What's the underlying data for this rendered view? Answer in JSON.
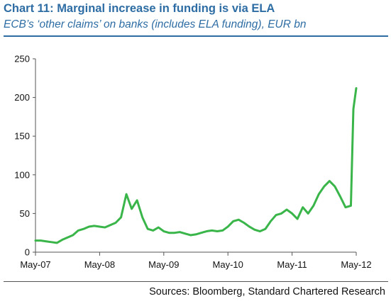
{
  "header": {
    "title": "Chart 11: Marginal increase in funding is via ELA",
    "subtitle": "ECB’s ‘other claims’ on banks (includes ELA funding), EUR bn"
  },
  "footer": {
    "source": "Sources: Bloomberg, Standard Chartered Research"
  },
  "colors": {
    "title": "#2e6da4",
    "series": "#3ab54a",
    "axis": "#555555"
  },
  "chart_data": {
    "type": "line",
    "title": "Chart 11: Marginal increase in funding is via ELA",
    "subtitle": "ECB’s ‘other claims’ on banks (includes ELA funding), EUR bn",
    "xlabel": "",
    "ylabel": "",
    "x_ticks": [
      "May-07",
      "May-08",
      "May-09",
      "May-10",
      "May-11",
      "May-12"
    ],
    "xlim": [
      "2007-05",
      "2012-05"
    ],
    "ylim": [
      0,
      250
    ],
    "y_ticks": [
      0,
      50,
      100,
      150,
      200,
      250
    ],
    "grid": false,
    "legend": "none",
    "series": [
      {
        "color": "#3ab54a",
        "points": [
          [
            "2007-05",
            15
          ],
          [
            "2007-06",
            15
          ],
          [
            "2007-07",
            14
          ],
          [
            "2007-08",
            13
          ],
          [
            "2007-09",
            12
          ],
          [
            "2007-10",
            16
          ],
          [
            "2007-11",
            19
          ],
          [
            "2007-12",
            22
          ],
          [
            "2008-01",
            28
          ],
          [
            "2008-02",
            30
          ],
          [
            "2008-03",
            33
          ],
          [
            "2008-04",
            34
          ],
          [
            "2008-05",
            33
          ],
          [
            "2008-06",
            32
          ],
          [
            "2008-07",
            35
          ],
          [
            "2008-08",
            38
          ],
          [
            "2008-09",
            45
          ],
          [
            "2008-10",
            75
          ],
          [
            "2008-11",
            56
          ],
          [
            "2008-12",
            67
          ],
          [
            "2009-01",
            45
          ],
          [
            "2009-02",
            30
          ],
          [
            "2009-03",
            28
          ],
          [
            "2009-04",
            32
          ],
          [
            "2009-05",
            27
          ],
          [
            "2009-06",
            25
          ],
          [
            "2009-07",
            25
          ],
          [
            "2009-08",
            26
          ],
          [
            "2009-09",
            24
          ],
          [
            "2009-10",
            22
          ],
          [
            "2009-11",
            23
          ],
          [
            "2009-12",
            25
          ],
          [
            "2010-01",
            27
          ],
          [
            "2010-02",
            28
          ],
          [
            "2010-03",
            27
          ],
          [
            "2010-04",
            28
          ],
          [
            "2010-05",
            33
          ],
          [
            "2010-06",
            40
          ],
          [
            "2010-07",
            42
          ],
          [
            "2010-08",
            38
          ],
          [
            "2010-09",
            33
          ],
          [
            "2010-10",
            29
          ],
          [
            "2010-11",
            27
          ],
          [
            "2010-12",
            30
          ],
          [
            "2011-01",
            40
          ],
          [
            "2011-02",
            48
          ],
          [
            "2011-03",
            50
          ],
          [
            "2011-04",
            55
          ],
          [
            "2011-05",
            50
          ],
          [
            "2011-06",
            43
          ],
          [
            "2011-07",
            58
          ],
          [
            "2011-08",
            50
          ],
          [
            "2011-09",
            60
          ],
          [
            "2011-10",
            75
          ],
          [
            "2011-11",
            85
          ],
          [
            "2011-12",
            92
          ],
          [
            "2012-01",
            85
          ],
          [
            "2012-02",
            72
          ],
          [
            "2012-03",
            58
          ],
          [
            "2012-04",
            60
          ],
          [
            "2012-04-15",
            185
          ],
          [
            "2012-05",
            212
          ]
        ]
      }
    ]
  }
}
